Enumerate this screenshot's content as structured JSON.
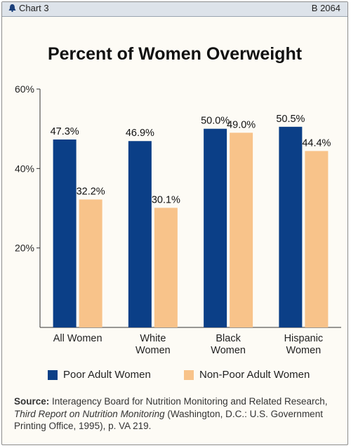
{
  "header": {
    "chart_label": "Chart 3",
    "report_id": "B 2064"
  },
  "colors": {
    "poor": "#0b3f87",
    "nonpoor": "#f8c38a",
    "axis": "#333333"
  },
  "source": {
    "label": "Source:",
    "text_before": "Interagency Board for Nutrition Monitoring and Related Research,",
    "italic": "Third Report on Nutrition Monitoring",
    "text_after": "(Washington, D.C.: U.S. Government Printing Office, 1995), p. VA 219."
  },
  "chart_data": {
    "type": "bar",
    "title": "Percent of Women Overweight",
    "categories": [
      [
        "All Women"
      ],
      [
        "White",
        "Women"
      ],
      [
        "Black",
        "Women"
      ],
      [
        "Hispanic",
        "Women"
      ]
    ],
    "series": [
      {
        "name": "Poor Adult Women",
        "values": [
          47.3,
          46.9,
          50.0,
          50.5
        ],
        "labels": [
          "47.3%",
          "46.9%",
          "50.0%",
          "50.5%"
        ]
      },
      {
        "name": "Non-Poor Adult Women",
        "values": [
          32.2,
          30.1,
          49.0,
          44.4
        ],
        "labels": [
          "32.2%",
          "30.1%",
          "49.0%",
          "44.4%"
        ]
      }
    ],
    "ylim": [
      0,
      60
    ],
    "yticks": [
      20,
      40,
      60
    ],
    "ytick_labels": [
      "20%",
      "40%",
      "60%"
    ],
    "xlabel": "",
    "ylabel": "",
    "legend_position": "bottom",
    "grid": false
  }
}
